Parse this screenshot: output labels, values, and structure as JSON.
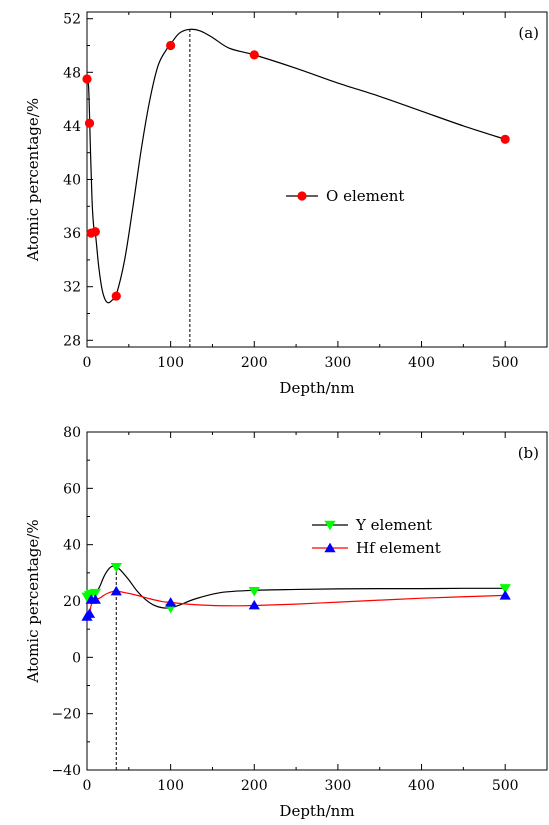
{
  "chart_data": [
    {
      "type": "line",
      "panel_label": "(a)",
      "xlabel": "Depth/nm",
      "ylabel": "Atomic percentage/%",
      "xlim": [
        0,
        550
      ],
      "ylim": [
        27.5,
        52.5
      ],
      "xticks": [
        0,
        100,
        200,
        300,
        400,
        500
      ],
      "xtick_labels": [
        "0",
        "100",
        "200",
        "300",
        "400",
        "500"
      ],
      "yticks": [
        28,
        32,
        36,
        40,
        44,
        48,
        52
      ],
      "ytick_labels": [
        "28",
        "32",
        "36",
        "40",
        "44",
        "48",
        "52"
      ],
      "grid": false,
      "legend_position": "center-right",
      "series": [
        {
          "name": "O element",
          "marker": "circle",
          "color": "#ff0000",
          "line_color": "#000000",
          "x": [
            0,
            3,
            5,
            10,
            35,
            100,
            200,
            500
          ],
          "y": [
            47.5,
            44.2,
            36.0,
            36.1,
            31.3,
            50.0,
            49.3,
            43.0
          ],
          "curve": {
            "x": [
              0,
              2,
              4,
              6,
              8,
              10,
              14,
              18,
              22,
              26,
              30,
              35,
              45,
              55,
              65,
              75,
              85,
              95,
              100,
              110,
              122,
              135,
              150,
              170,
              200,
              250,
              300,
              350,
              400,
              450,
              500
            ],
            "y": [
              47.5,
              46.8,
              42.5,
              38.5,
              36.5,
              36.0,
              33.5,
              31.8,
              31.0,
              30.8,
              31.0,
              31.4,
              34.0,
              38.0,
              42.3,
              45.9,
              48.5,
              49.7,
              50.1,
              50.9,
              51.2,
              51.1,
              50.6,
              49.8,
              49.3,
              48.3,
              47.2,
              46.2,
              45.1,
              44.0,
              43.0
            ]
          }
        }
      ],
      "annotations": [
        {
          "type": "vertical-dashed-line",
          "x": 123
        }
      ]
    },
    {
      "type": "line",
      "panel_label": "(b)",
      "xlabel": "Depth/nm",
      "ylabel": "Atomic percentage/%",
      "xlim": [
        0,
        550
      ],
      "ylim": [
        -40,
        80
      ],
      "xticks": [
        0,
        100,
        200,
        300,
        400,
        500
      ],
      "xtick_labels": [
        "0",
        "100",
        "200",
        "300",
        "400",
        "500"
      ],
      "yticks": [
        -40,
        -20,
        0,
        20,
        40,
        60,
        80
      ],
      "ytick_labels": [
        "−40",
        "−20",
        "0",
        "20",
        "40",
        "60",
        "80"
      ],
      "grid": false,
      "legend_position": "center-right",
      "series": [
        {
          "name": "Y element",
          "marker": "triangle-down",
          "color": "#00ff00",
          "line_color": "#000000",
          "x": [
            0,
            3,
            5,
            10,
            35,
            100,
            200,
            500
          ],
          "y": [
            21.5,
            22.0,
            22.5,
            22.8,
            32.0,
            17.5,
            23.5,
            24.5
          ],
          "curve": {
            "x": [
              0,
              5,
              10,
              15,
              20,
              25,
              30,
              35,
              40,
              50,
              60,
              70,
              80,
              90,
              100,
              110,
              130,
              160,
              200,
              250,
              300,
              350,
              400,
              450,
              500
            ],
            "y": [
              21.5,
              22.5,
              22.8,
              25.0,
              28.5,
              31.0,
              32.3,
              32.0,
              31.0,
              27.5,
              23.5,
              20.5,
              18.5,
              17.6,
              17.6,
              18.5,
              20.8,
              23.0,
              23.8,
              24.1,
              24.3,
              24.4,
              24.4,
              24.5,
              24.5
            ]
          }
        },
        {
          "name": "Hf element",
          "marker": "triangle-up",
          "color": "#0000ff",
          "line_color": "#ff0000",
          "x": [
            0,
            3,
            5,
            10,
            35,
            100,
            200,
            500
          ],
          "y": [
            14.5,
            15.5,
            20.5,
            20.5,
            23.5,
            19.5,
            18.5,
            22.0
          ],
          "curve": {
            "x": [
              0,
              3,
              5,
              8,
              10,
              15,
              20,
              25,
              30,
              35,
              45,
              60,
              75,
              90,
              100,
              120,
              150,
              180,
              200,
              250,
              300,
              350,
              400,
              450,
              500
            ],
            "y": [
              14.5,
              15.5,
              18.5,
              20.3,
              20.5,
              21.0,
              22.0,
              22.8,
              23.3,
              23.5,
              23.0,
              22.0,
              20.8,
              19.8,
              19.5,
              18.9,
              18.4,
              18.3,
              18.4,
              18.9,
              19.6,
              20.3,
              21.0,
              21.5,
              22.0
            ]
          }
        }
      ],
      "annotations": [
        {
          "type": "vertical-dashed-line",
          "x": 35
        }
      ]
    }
  ]
}
